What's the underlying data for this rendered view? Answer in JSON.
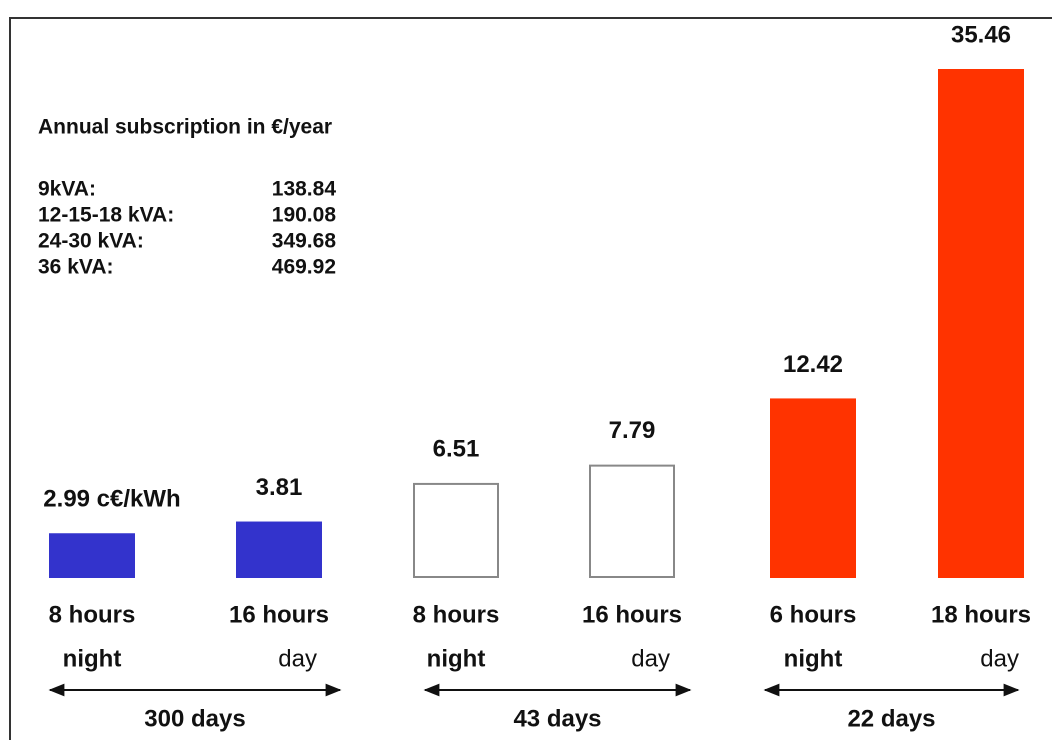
{
  "chart_data": {
    "type": "bar",
    "categories": [
      [
        "8 hours",
        "night"
      ],
      [
        "16 hours",
        "day"
      ],
      [
        "8 hours",
        "night"
      ],
      [
        "16 hours",
        "day"
      ],
      [
        "6 hours",
        "night"
      ],
      [
        "18 hours",
        "day"
      ]
    ],
    "values": [
      2.99,
      3.81,
      6.51,
      7.79,
      12.42,
      35.46
    ],
    "value_labels": [
      "2.99 c€/kWh",
      "3.81",
      "6.51",
      "7.79",
      "12.42",
      "35.46"
    ],
    "colors": [
      "#3333cc",
      "#3333cc",
      "#ffffff",
      "#ffffff",
      "#ff3300",
      "#ff3300"
    ],
    "groups": [
      "300 days",
      "43 days",
      "22 days"
    ],
    "annotation": {
      "title": "Annual subscription in €/year",
      "rows": [
        [
          "9kVA:",
          "138.84"
        ],
        [
          "12-15-18 kVA:",
          "190.08"
        ],
        [
          "24-30 kVA:",
          "349.68"
        ],
        [
          "36 kVA:",
          "469.92"
        ]
      ]
    }
  }
}
